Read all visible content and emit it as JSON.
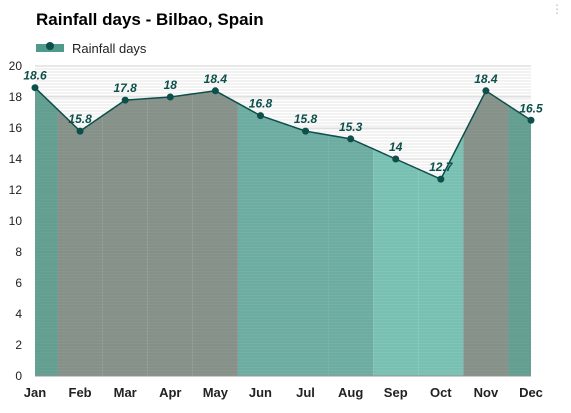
{
  "chart_data": {
    "type": "area",
    "title": "Rainfall days - Bilbao, Spain",
    "categories": [
      "Jan",
      "Feb",
      "Mar",
      "Apr",
      "May",
      "Jun",
      "Jul",
      "Aug",
      "Sep",
      "Oct",
      "Nov",
      "Dec"
    ],
    "series": [
      {
        "name": "Rainfall days",
        "values": [
          18.6,
          15.8,
          17.8,
          18,
          18.4,
          16.8,
          15.8,
          15.3,
          14,
          12.7,
          18.4,
          16.5
        ]
      }
    ],
    "data_labels": [
      "18.6",
      "15.8",
      "17.8",
      "18",
      "18.4",
      "16.8",
      "15.8",
      "15.3",
      "14",
      "12.7",
      "18.4",
      "16.5"
    ],
    "ylim": [
      0,
      20
    ],
    "yticks": [
      0,
      2,
      4,
      6,
      8,
      10,
      12,
      14,
      16,
      18,
      20
    ],
    "xlabel": "",
    "ylabel": "",
    "grid": true,
    "legend_position": "top-left",
    "month_colors": [
      "#5e9e8f",
      "#838f87",
      "#838f87",
      "#838f87",
      "#838f87",
      "#69ada2",
      "#69ada2",
      "#69ada2",
      "#77c2b3",
      "#77c2b3",
      "#838f87",
      "#5e9e8f"
    ],
    "line_color": "#0d4f4a",
    "label_color": "#0d4f4a"
  },
  "ui": {
    "corner_icon": "more-icon",
    "corner_glyph": "⋮"
  }
}
